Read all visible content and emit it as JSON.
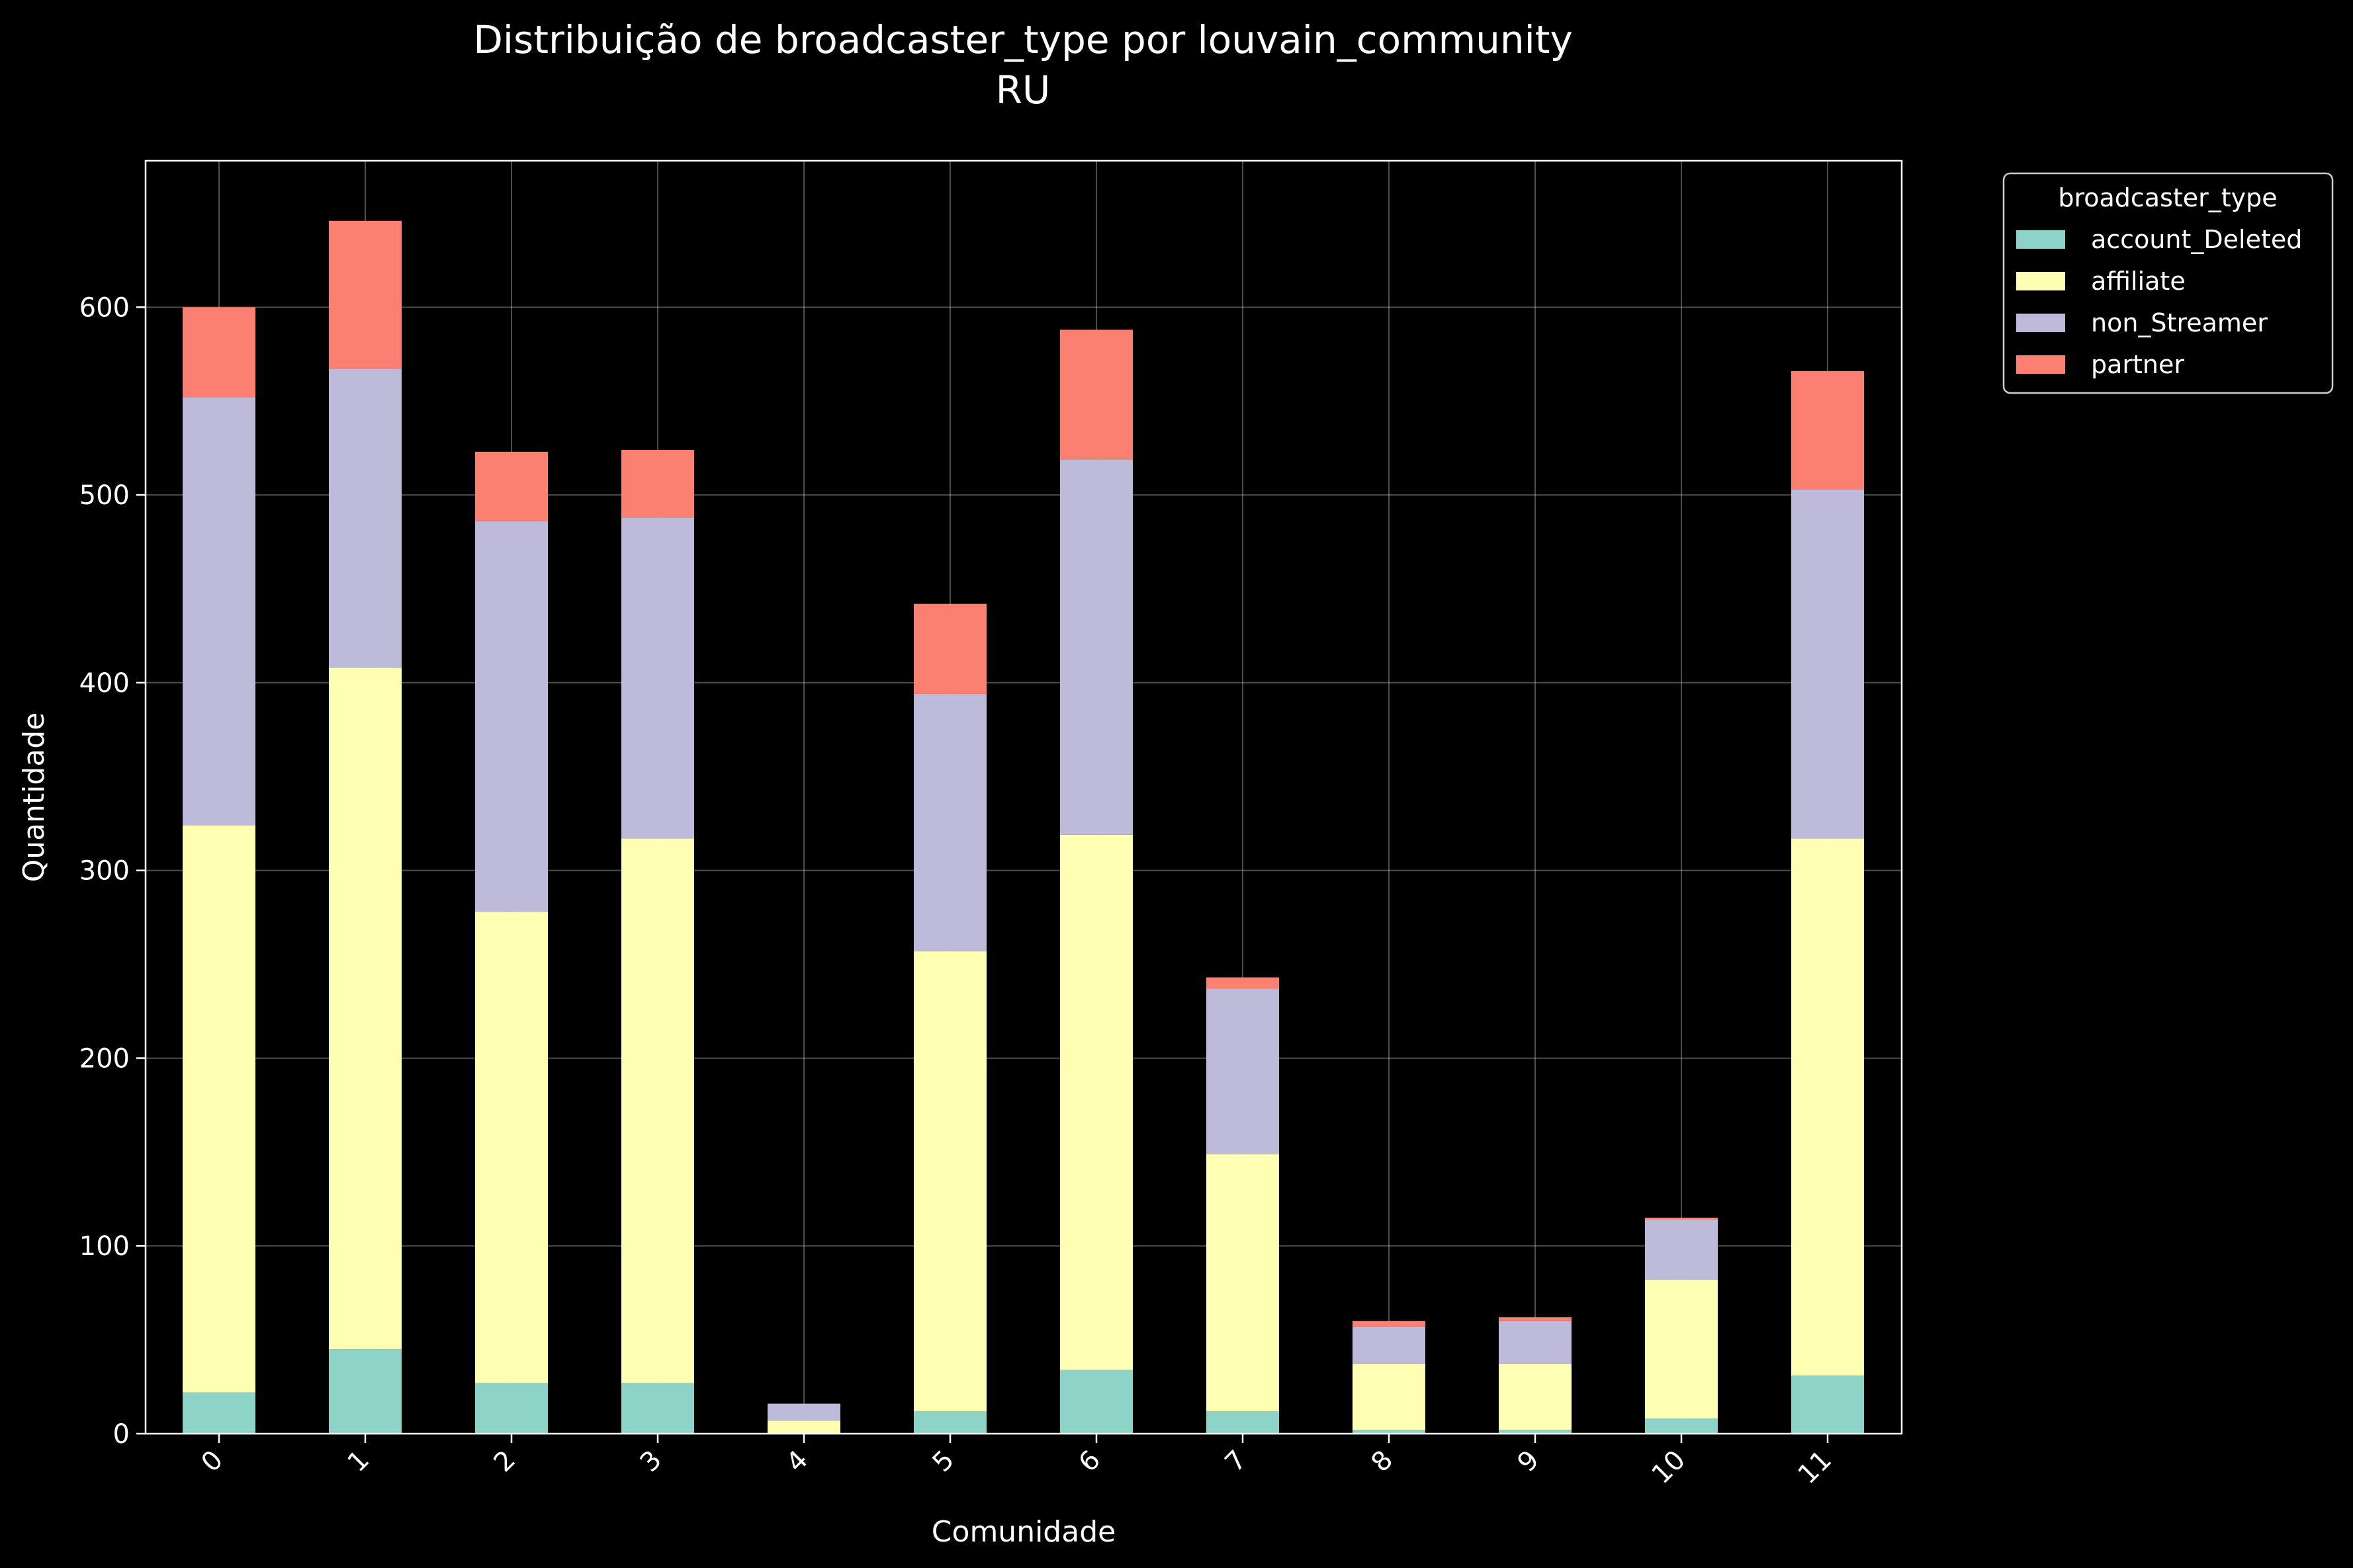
{
  "chart_data": {
    "type": "bar",
    "stacked": true,
    "title": "Distribuição de broadcaster_type por louvain_community",
    "subtitle": "RU",
    "xlabel": "Comunidade",
    "ylabel": "Quantidade",
    "ylim": [
      0,
      678
    ],
    "yticks": [
      0,
      100,
      200,
      300,
      400,
      500,
      600
    ],
    "grid": true,
    "legend_position": "outside-top-right",
    "legend_title": "broadcaster_type",
    "categories": [
      "0",
      "1",
      "2",
      "3",
      "4",
      "5",
      "6",
      "7",
      "8",
      "9",
      "10",
      "11"
    ],
    "series": [
      {
        "name": "account_Deleted",
        "color": "#8dd3c7",
        "values": [
          22,
          45,
          27,
          27,
          0,
          12,
          34,
          12,
          2,
          2,
          8,
          31
        ]
      },
      {
        "name": "affiliate",
        "color": "#ffffb3",
        "values": [
          302,
          363,
          251,
          290,
          7,
          245,
          285,
          137,
          35,
          35,
          74,
          286
        ]
      },
      {
        "name": "non_Streamer",
        "color": "#bebada",
        "values": [
          228,
          159,
          208,
          171,
          9,
          137,
          200,
          88,
          20,
          23,
          32,
          186
        ]
      },
      {
        "name": "partner",
        "color": "#fb8072",
        "values": [
          48,
          79,
          37,
          36,
          0,
          48,
          69,
          6,
          3,
          2,
          1,
          63
        ]
      }
    ]
  }
}
